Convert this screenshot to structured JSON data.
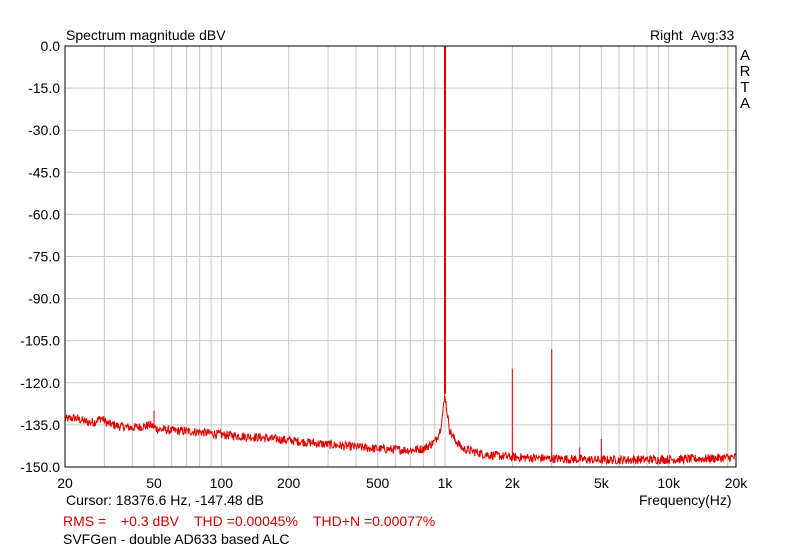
{
  "header": {
    "title": "Spectrum magnitude dBV",
    "channel": "Right",
    "avg": "Avg:33",
    "brand_letters": [
      "A",
      "R",
      "T",
      "A"
    ]
  },
  "footer": {
    "cursor": "Cursor: 18376.6 Hz, -147.48 dB",
    "xlabel": "Frequency(Hz)",
    "rms_label": "RMS =",
    "rms_value": "+0.3 dBV",
    "thd": "THD =0.00045%",
    "thdn": "THD+N =0.00077%",
    "caption": "SVFGen - double AD633 based ALC"
  },
  "colors": {
    "trace": "#e00000",
    "stat_text": "#d40000",
    "grid": "#c8c8c8",
    "cursor_line": "#cccc66"
  },
  "chart_data": {
    "type": "line",
    "title": "Spectrum magnitude dBV",
    "xlabel": "Frequency(Hz)",
    "ylabel": "",
    "x_scale": "log",
    "xlim": [
      20,
      20000
    ],
    "ylim": [
      -150,
      0
    ],
    "x_ticks": [
      {
        "value": 20,
        "label": "20"
      },
      {
        "value": 50,
        "label": "50"
      },
      {
        "value": 100,
        "label": "100"
      },
      {
        "value": 200,
        "label": "200"
      },
      {
        "value": 500,
        "label": "500"
      },
      {
        "value": 1000,
        "label": "1k"
      },
      {
        "value": 2000,
        "label": "2k"
      },
      {
        "value": 5000,
        "label": "5k"
      },
      {
        "value": 10000,
        "label": "10k"
      },
      {
        "value": 20000,
        "label": "20k"
      }
    ],
    "y_ticks": [
      {
        "value": 0,
        "label": "0.0"
      },
      {
        "value": -15,
        "label": "-15.0"
      },
      {
        "value": -30,
        "label": "-30.0"
      },
      {
        "value": -45,
        "label": "-45.0"
      },
      {
        "value": -60,
        "label": "-60.0"
      },
      {
        "value": -75,
        "label": "-75.0"
      },
      {
        "value": -90,
        "label": "-90.0"
      },
      {
        "value": -105,
        "label": "-105.0"
      },
      {
        "value": -120,
        "label": "-120.0"
      },
      {
        "value": -135,
        "label": "-135.0"
      },
      {
        "value": -150,
        "label": "-150.0"
      }
    ],
    "grid": true,
    "cursor_x": 18376.6,
    "series": [
      {
        "color": "#e00000",
        "floor": [
          [
            20,
            -133
          ],
          [
            22,
            -132.5
          ],
          [
            25,
            -134
          ],
          [
            27,
            -134
          ],
          [
            29,
            -132.5
          ],
          [
            31,
            -134.5
          ],
          [
            35,
            -135.5
          ],
          [
            40,
            -136
          ],
          [
            45,
            -135.5
          ],
          [
            48,
            -135
          ],
          [
            52,
            -136.5
          ],
          [
            60,
            -137
          ],
          [
            80,
            -137.5
          ],
          [
            100,
            -138.5
          ],
          [
            150,
            -139.5
          ],
          [
            200,
            -140.5
          ],
          [
            300,
            -142
          ],
          [
            500,
            -143.5
          ],
          [
            700,
            -144
          ],
          [
            800,
            -143.5
          ],
          [
            900,
            -141
          ],
          [
            950,
            -137
          ],
          [
            980,
            -130
          ],
          [
            1000,
            -124
          ],
          [
            1020,
            -130
          ],
          [
            1050,
            -137
          ],
          [
            1100,
            -140
          ],
          [
            1200,
            -143.5
          ],
          [
            1500,
            -145.5
          ],
          [
            2000,
            -146.5
          ],
          [
            3000,
            -147
          ],
          [
            5000,
            -147.5
          ],
          [
            10000,
            -147.3
          ],
          [
            15000,
            -147
          ],
          [
            20000,
            -146.5
          ]
        ],
        "peaks": [
          {
            "f": 50,
            "db": -130
          },
          {
            "f": 1000,
            "db": 0
          },
          {
            "f": 2000,
            "db": -115
          },
          {
            "f": 3000,
            "db": -108
          },
          {
            "f": 4000,
            "db": -143
          },
          {
            "f": 5000,
            "db": -140
          }
        ]
      }
    ]
  }
}
